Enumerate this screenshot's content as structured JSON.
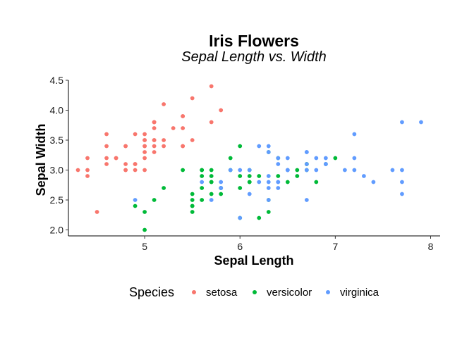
{
  "chart_data": {
    "type": "scatter",
    "title": "Iris Flowers",
    "subtitle": "Sepal Length vs. Width",
    "xlabel": "Sepal Length",
    "ylabel": "Sepal Width",
    "xlim": [
      4.2,
      8.1
    ],
    "ylim": [
      1.9,
      4.5
    ],
    "x_ticks": [
      5,
      6,
      7,
      8
    ],
    "y_ticks": [
      2.0,
      2.5,
      3.0,
      3.5,
      4.0,
      4.5
    ],
    "grid": false,
    "legend": {
      "title": "Species",
      "position": "bottom"
    },
    "series": [
      {
        "name": "setosa",
        "color": "#F8766D",
        "points": [
          [
            5.1,
            3.5
          ],
          [
            4.9,
            3.0
          ],
          [
            4.7,
            3.2
          ],
          [
            4.6,
            3.1
          ],
          [
            5.0,
            3.6
          ],
          [
            5.4,
            3.9
          ],
          [
            4.6,
            3.4
          ],
          [
            5.0,
            3.4
          ],
          [
            4.4,
            2.9
          ],
          [
            4.9,
            3.1
          ],
          [
            5.4,
            3.7
          ],
          [
            4.8,
            3.4
          ],
          [
            4.8,
            3.0
          ],
          [
            4.3,
            3.0
          ],
          [
            5.8,
            4.0
          ],
          [
            5.7,
            4.4
          ],
          [
            5.4,
            3.9
          ],
          [
            5.1,
            3.5
          ],
          [
            5.7,
            3.8
          ],
          [
            5.1,
            3.8
          ],
          [
            5.4,
            3.4
          ],
          [
            5.1,
            3.7
          ],
          [
            4.6,
            3.6
          ],
          [
            5.1,
            3.3
          ],
          [
            4.8,
            3.4
          ],
          [
            5.0,
            3.0
          ],
          [
            5.0,
            3.4
          ],
          [
            5.2,
            3.5
          ],
          [
            5.2,
            3.4
          ],
          [
            4.7,
            3.2
          ],
          [
            4.8,
            3.1
          ],
          [
            5.4,
            3.4
          ],
          [
            5.2,
            4.1
          ],
          [
            5.5,
            4.2
          ],
          [
            4.9,
            3.1
          ],
          [
            5.0,
            3.2
          ],
          [
            5.5,
            3.5
          ],
          [
            4.9,
            3.6
          ],
          [
            4.4,
            3.0
          ],
          [
            5.1,
            3.4
          ],
          [
            5.0,
            3.5
          ],
          [
            4.5,
            2.3
          ],
          [
            4.4,
            3.2
          ],
          [
            5.0,
            3.5
          ],
          [
            5.1,
            3.8
          ],
          [
            4.8,
            3.0
          ],
          [
            5.1,
            3.8
          ],
          [
            4.6,
            3.2
          ],
          [
            5.3,
            3.7
          ],
          [
            5.0,
            3.3
          ]
        ]
      },
      {
        "name": "versicolor",
        "color": "#00BA38",
        "points": [
          [
            7.0,
            3.2
          ],
          [
            6.4,
            3.2
          ],
          [
            6.9,
            3.1
          ],
          [
            5.5,
            2.3
          ],
          [
            6.5,
            2.8
          ],
          [
            5.7,
            2.8
          ],
          [
            6.3,
            3.3
          ],
          [
            4.9,
            2.4
          ],
          [
            6.6,
            2.9
          ],
          [
            5.2,
            2.7
          ],
          [
            5.0,
            2.0
          ],
          [
            5.9,
            3.0
          ],
          [
            6.0,
            2.2
          ],
          [
            6.1,
            2.9
          ],
          [
            5.6,
            2.9
          ],
          [
            6.7,
            3.1
          ],
          [
            5.6,
            3.0
          ],
          [
            5.8,
            2.7
          ],
          [
            6.2,
            2.2
          ],
          [
            5.6,
            2.5
          ],
          [
            5.9,
            3.2
          ],
          [
            6.1,
            2.8
          ],
          [
            6.3,
            2.5
          ],
          [
            6.1,
            2.8
          ],
          [
            6.4,
            2.9
          ],
          [
            6.6,
            3.0
          ],
          [
            6.8,
            2.8
          ],
          [
            6.7,
            3.0
          ],
          [
            6.0,
            2.9
          ],
          [
            5.7,
            2.6
          ],
          [
            5.5,
            2.4
          ],
          [
            5.5,
            2.4
          ],
          [
            5.8,
            2.7
          ],
          [
            6.0,
            2.7
          ],
          [
            5.4,
            3.0
          ],
          [
            6.0,
            3.4
          ],
          [
            6.7,
            3.1
          ],
          [
            6.3,
            2.3
          ],
          [
            5.6,
            3.0
          ],
          [
            5.5,
            2.5
          ],
          [
            5.5,
            2.6
          ],
          [
            6.1,
            3.0
          ],
          [
            5.8,
            2.6
          ],
          [
            5.0,
            2.3
          ],
          [
            5.6,
            2.7
          ],
          [
            5.7,
            3.0
          ],
          [
            5.7,
            2.9
          ],
          [
            6.2,
            2.9
          ],
          [
            5.1,
            2.5
          ],
          [
            5.7,
            2.8
          ]
        ]
      },
      {
        "name": "virginica",
        "color": "#619CFF",
        "points": [
          [
            6.3,
            3.3
          ],
          [
            5.8,
            2.7
          ],
          [
            7.1,
            3.0
          ],
          [
            6.3,
            2.9
          ],
          [
            6.5,
            3.0
          ],
          [
            7.6,
            3.0
          ],
          [
            4.9,
            2.5
          ],
          [
            7.3,
            2.9
          ],
          [
            6.7,
            2.5
          ],
          [
            7.2,
            3.6
          ],
          [
            6.5,
            3.2
          ],
          [
            6.4,
            2.7
          ],
          [
            6.8,
            3.0
          ],
          [
            5.7,
            2.5
          ],
          [
            5.8,
            2.8
          ],
          [
            6.4,
            3.2
          ],
          [
            6.5,
            3.0
          ],
          [
            7.7,
            3.8
          ],
          [
            7.7,
            2.6
          ],
          [
            6.0,
            2.2
          ],
          [
            6.9,
            3.2
          ],
          [
            5.6,
            2.8
          ],
          [
            7.7,
            2.8
          ],
          [
            6.3,
            2.7
          ],
          [
            6.7,
            3.3
          ],
          [
            7.2,
            3.2
          ],
          [
            6.2,
            2.8
          ],
          [
            6.1,
            3.0
          ],
          [
            6.4,
            2.8
          ],
          [
            7.2,
            3.0
          ],
          [
            7.4,
            2.8
          ],
          [
            7.9,
            3.8
          ],
          [
            6.4,
            2.8
          ],
          [
            6.3,
            2.8
          ],
          [
            6.1,
            2.6
          ],
          [
            7.7,
            3.0
          ],
          [
            6.3,
            3.4
          ],
          [
            6.4,
            3.1
          ],
          [
            6.0,
            3.0
          ],
          [
            6.9,
            3.1
          ],
          [
            6.7,
            3.1
          ],
          [
            6.9,
            3.1
          ],
          [
            5.8,
            2.7
          ],
          [
            6.8,
            3.2
          ],
          [
            6.7,
            3.3
          ],
          [
            6.7,
            3.0
          ],
          [
            6.3,
            2.5
          ],
          [
            6.5,
            3.0
          ],
          [
            6.2,
            3.4
          ],
          [
            5.9,
            3.0
          ]
        ]
      }
    ]
  }
}
